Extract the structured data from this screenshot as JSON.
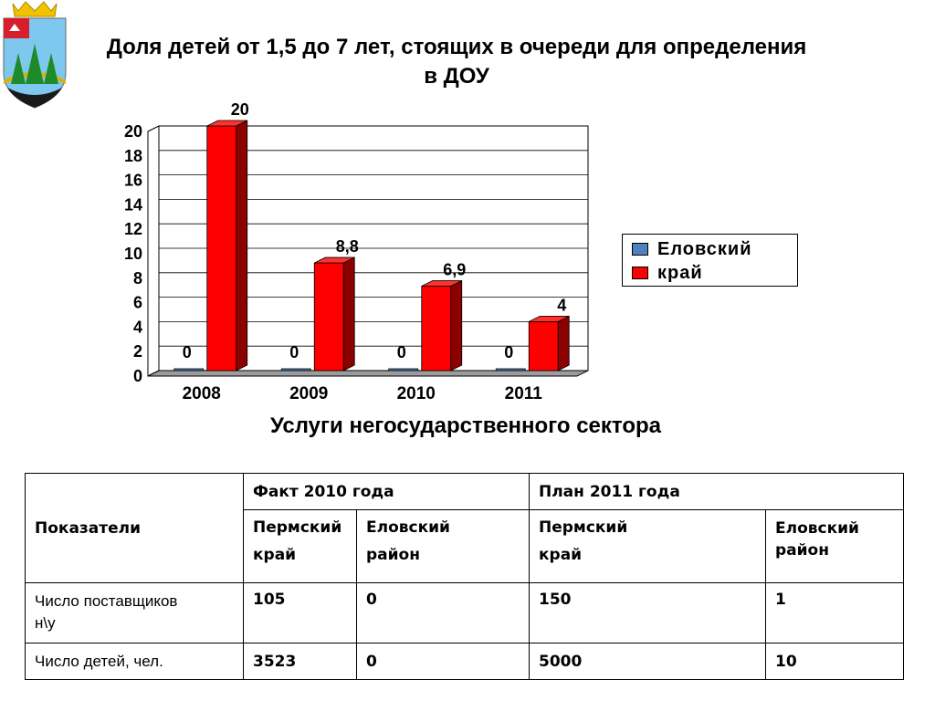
{
  "title": "Доля детей от 1,5 до 7 лет, стоящих в очереди для определения в ДОУ",
  "subtitle": "Услуги негосударственного сектора",
  "colors": {
    "series1": "#4f81bd",
    "series2": "#ff0000",
    "series2_dark": "#8b0000"
  },
  "chart_data": {
    "type": "bar",
    "categories": [
      "2008",
      "2009",
      "2010",
      "2011"
    ],
    "series": [
      {
        "name": "Еловский",
        "values": [
          0,
          0,
          0,
          0
        ],
        "labels": [
          "0",
          "0",
          "0",
          "0"
        ]
      },
      {
        "name": "край",
        "values": [
          20,
          8.8,
          6.9,
          4
        ],
        "labels": [
          "20",
          "8,8",
          "6,9",
          "4"
        ]
      }
    ],
    "ylim": [
      0,
      20
    ],
    "yticks": [
      "0",
      "2",
      "4",
      "6",
      "8",
      "10",
      "12",
      "14",
      "16",
      "18",
      "20"
    ],
    "grid": true,
    "legend_position": "right"
  },
  "table": {
    "col_header": "Показатели",
    "group1": "Факт 2010 года",
    "group2": "План 2011 года",
    "sub1": [
      "Пермский",
      "край"
    ],
    "sub2": [
      "Еловский",
      "район"
    ],
    "sub3": [
      "Пермский",
      "край"
    ],
    "sub4": [
      "Еловский",
      "район"
    ],
    "rows": [
      {
        "label": [
          "Число поставщиков",
          "н\\у"
        ],
        "values": [
          "105",
          "0",
          "150",
          "1"
        ]
      },
      {
        "label": [
          "Число детей, чел."
        ],
        "values": [
          "3523",
          "0",
          "5000",
          "10"
        ]
      }
    ]
  }
}
